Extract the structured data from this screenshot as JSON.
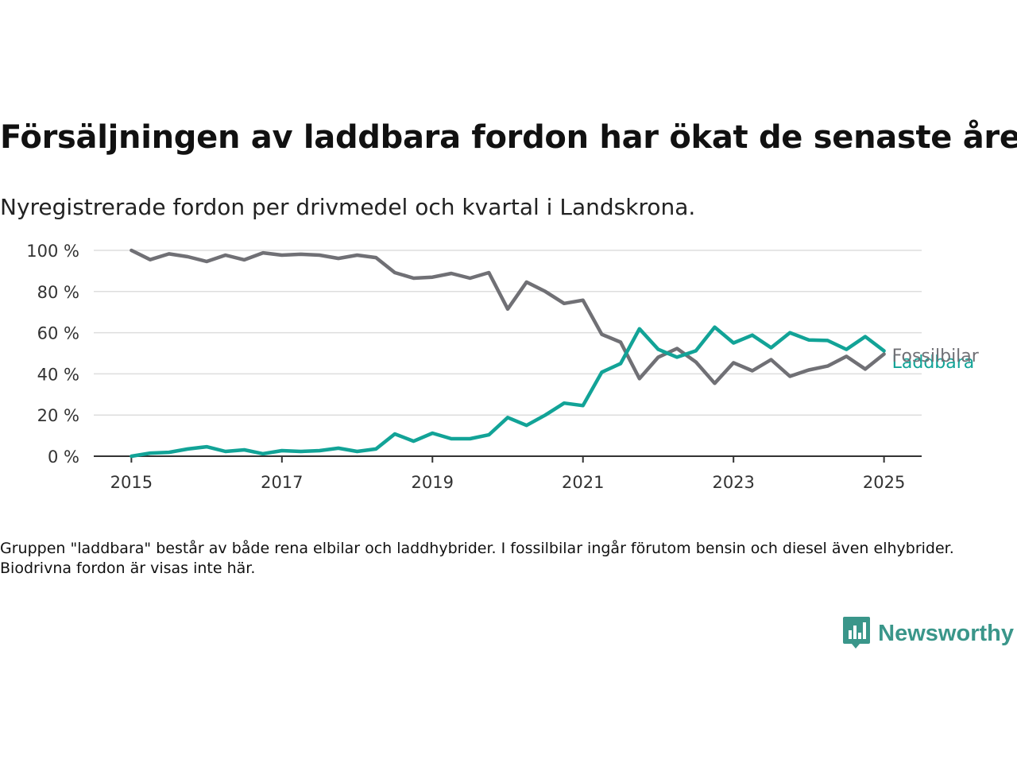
{
  "header": {
    "title": "Försäljningen av laddbara fordon har ökat de senaste åren",
    "subtitle": "Nyregistrerade fordon per drivmedel och kvartal i Landskrona."
  },
  "footer": {
    "note": "Gruppen \"laddbara\" består av både rena elbilar och laddhybrider. I fossilbilar ingår förutom bensin och diesel även elhybrider. Biodrivna fordon är visas inte här.",
    "brand": "Newsworthy",
    "brand_icon": "newsworthy-logo-icon"
  },
  "colors": {
    "fossil": "#707075",
    "laddbara": "#12a397",
    "grid": "#dddddd",
    "axis": "#333333",
    "brand": "#3a968a"
  },
  "chart_data": {
    "type": "line",
    "title": "Försäljningen av laddbara fordon har ökat de senaste åren",
    "subtitle": "Nyregistrerade fordon per drivmedel och kvartal i Landskrona.",
    "x_start": 2015,
    "x_step": 0.25,
    "xlim": [
      2014.5,
      2025.5
    ],
    "ylim": [
      0,
      100
    ],
    "x_ticks": [
      2015,
      2017,
      2019,
      2021,
      2023,
      2025
    ],
    "x_tick_labels": [
      "2015",
      "2017",
      "2019",
      "2021",
      "2023",
      "2025"
    ],
    "y_ticks": [
      0,
      20,
      40,
      60,
      80,
      100
    ],
    "y_tick_labels": [
      "0 %",
      "20 %",
      "40 %",
      "60 %",
      "80 %",
      "100 %"
    ],
    "grid": true,
    "legend": "direct labels at line ends",
    "series": [
      {
        "name": "Fossilbilar",
        "color": "#707075",
        "values": [
          100,
          95.5,
          98.3,
          96.9,
          94.6,
          97.7,
          95.4,
          98.8,
          97.7,
          98.1,
          97.7,
          96.1,
          97.7,
          96.5,
          89.2,
          86.5,
          87.0,
          88.8,
          86.5,
          89.2,
          71.5,
          84.6,
          80.0,
          74.2,
          75.8,
          59.2,
          55.4,
          37.7,
          48.1,
          52.3,
          45.8,
          35.4,
          45.4,
          41.5,
          46.9,
          38.8,
          41.9,
          43.8,
          48.5,
          42.3,
          49.6
        ]
      },
      {
        "name": "Laddbara",
        "color": "#12a397",
        "values": [
          0,
          1.5,
          1.9,
          3.5,
          4.6,
          2.3,
          3.1,
          1.2,
          2.7,
          2.3,
          2.7,
          3.9,
          2.3,
          3.5,
          10.8,
          7.3,
          11.2,
          8.5,
          8.5,
          10.4,
          18.8,
          15.0,
          20.0,
          25.8,
          24.6,
          40.8,
          45.0,
          61.9,
          51.9,
          48.1,
          51.2,
          62.7,
          55.0,
          58.8,
          52.7,
          60.0,
          56.5,
          56.2,
          51.9,
          58.1,
          51.2
        ]
      }
    ]
  }
}
